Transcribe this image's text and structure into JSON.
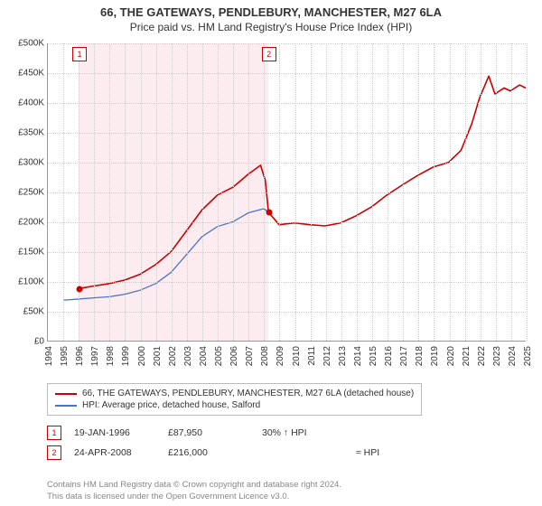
{
  "title": "66, THE GATEWAYS, PENDLEBURY, MANCHESTER, M27 6LA",
  "subtitle": "Price paid vs. HM Land Registry's House Price Index (HPI)",
  "chart": {
    "type": "line",
    "background_color": "#ffffff",
    "grid_color": "#cccccc",
    "axis_color": "#999999",
    "font_size_axis": 10,
    "font_size_title": 13,
    "font_size_legend": 10,
    "x": {
      "min": 1994,
      "max": 2025,
      "step": 1
    },
    "y": {
      "min": 0,
      "max": 500000,
      "step": 50000,
      "labels": [
        "£0",
        "£50K",
        "£100K",
        "£150K",
        "£200K",
        "£250K",
        "£300K",
        "£350K",
        "£400K",
        "£450K",
        "£500K"
      ]
    },
    "shade": {
      "from_year": 1996.05,
      "to_year": 2008.31,
      "color": "#fdecef"
    },
    "series": [
      {
        "name": "66, THE GATEWAYS, PENDLEBURY, MANCHESTER, M27 6LA (detached house)",
        "color": "#cc0000",
        "line_width": 1.6,
        "data": [
          [
            1996.05,
            87950
          ],
          [
            1997,
            92000
          ],
          [
            1998,
            96000
          ],
          [
            1999,
            102000
          ],
          [
            2000,
            112000
          ],
          [
            2001,
            128000
          ],
          [
            2002,
            150000
          ],
          [
            2003,
            185000
          ],
          [
            2004,
            220000
          ],
          [
            2005,
            245000
          ],
          [
            2006,
            258000
          ],
          [
            2007,
            280000
          ],
          [
            2007.8,
            295000
          ],
          [
            2008.1,
            270000
          ],
          [
            2008.31,
            216000
          ],
          [
            2009,
            195000
          ],
          [
            2010,
            198000
          ],
          [
            2011,
            195000
          ],
          [
            2012,
            193000
          ],
          [
            2013,
            198000
          ],
          [
            2014,
            210000
          ],
          [
            2015,
            225000
          ],
          [
            2016,
            245000
          ],
          [
            2017,
            262000
          ],
          [
            2018,
            278000
          ],
          [
            2019,
            292000
          ],
          [
            2020,
            300000
          ],
          [
            2020.8,
            320000
          ],
          [
            2021.5,
            365000
          ],
          [
            2022,
            408000
          ],
          [
            2022.6,
            445000
          ],
          [
            2023,
            415000
          ],
          [
            2023.6,
            425000
          ],
          [
            2024,
            420000
          ],
          [
            2024.6,
            430000
          ],
          [
            2025,
            425000
          ]
        ]
      },
      {
        "name": "HPI: Average price, detached house, Salford",
        "color": "#4a76c7",
        "line_width": 1.3,
        "data": [
          [
            1995,
            68000
          ],
          [
            1996,
            70000
          ],
          [
            1997,
            72000
          ],
          [
            1998,
            74000
          ],
          [
            1999,
            78000
          ],
          [
            2000,
            85000
          ],
          [
            2001,
            96000
          ],
          [
            2002,
            115000
          ],
          [
            2003,
            145000
          ],
          [
            2004,
            175000
          ],
          [
            2005,
            192000
          ],
          [
            2006,
            200000
          ],
          [
            2007,
            215000
          ],
          [
            2008,
            222000
          ],
          [
            2008.31,
            216000
          ]
        ]
      }
    ],
    "sale_points": [
      {
        "id": "1",
        "year": 1996.05,
        "price": 87950
      },
      {
        "id": "2",
        "year": 2008.31,
        "price": 216000
      }
    ],
    "sale_dot_color": "#cc0000",
    "marker_border_color": "#cc0000"
  },
  "legend": {
    "border_color": "#bbbbbb",
    "items": [
      {
        "label": "66, THE GATEWAYS, PENDLEBURY, MANCHESTER, M27 6LA (detached house)",
        "color": "#cc0000"
      },
      {
        "label": "HPI: Average price, detached house, Salford",
        "color": "#4a76c7"
      }
    ]
  },
  "sales": [
    {
      "id": "1",
      "date": "19-JAN-1996",
      "price": "£87,950",
      "pct": "30% ↑ HPI",
      "note": ""
    },
    {
      "id": "2",
      "date": "24-APR-2008",
      "price": "£216,000",
      "pct": "",
      "note": "≈ HPI"
    }
  ],
  "footer": {
    "line1": "Contains HM Land Registry data © Crown copyright and database right 2024.",
    "line2": "This data is licensed under the Open Government Licence v3.0."
  },
  "colors": {
    "text": "#333333",
    "footer_text": "#888888"
  }
}
